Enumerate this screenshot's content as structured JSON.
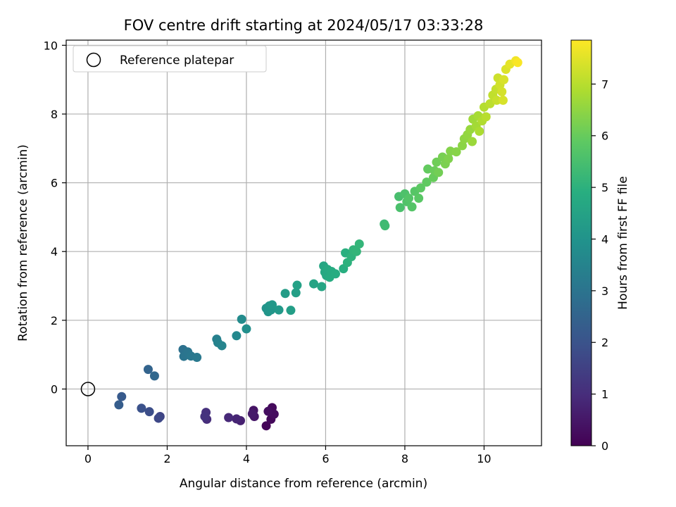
{
  "chart_data": {
    "type": "scatter",
    "title": "FOV centre drift starting at 2024/05/17 03:33:28",
    "xlabel": "Angular distance from reference (arcmin)",
    "ylabel": "Rotation from reference (arcmin)",
    "xlim": [
      -0.55,
      11.45
    ],
    "ylim": [
      -1.65,
      10.15
    ],
    "xticks": [
      0,
      2,
      4,
      6,
      8,
      10
    ],
    "yticks": [
      0,
      2,
      4,
      6,
      8,
      10
    ],
    "grid": true,
    "legend": {
      "placement": "top-left",
      "entries": [
        "Reference platepar"
      ]
    },
    "reference_point": {
      "x": 0,
      "y": 0,
      "label": "Reference platepar"
    },
    "colorbar": {
      "label": "Hours from first FF file",
      "min": 0,
      "max": 7.85,
      "ticks": [
        0,
        1,
        2,
        3,
        4,
        5,
        6,
        7
      ],
      "colormap": "viridis"
    },
    "points": [
      [
        4.5,
        -1.07,
        0.1
      ],
      [
        4.62,
        -0.88,
        0.15
      ],
      [
        4.65,
        -0.54,
        0.2
      ],
      [
        4.7,
        -0.73,
        0.25
      ],
      [
        4.55,
        -0.65,
        0.3
      ],
      [
        4.18,
        -0.62,
        0.4
      ],
      [
        4.2,
        -0.8,
        0.5
      ],
      [
        4.15,
        -0.72,
        0.55
      ],
      [
        3.85,
        -0.92,
        0.7
      ],
      [
        3.75,
        -0.87,
        0.8
      ],
      [
        3.55,
        -0.83,
        0.9
      ],
      [
        3.0,
        -0.88,
        1.0
      ],
      [
        2.98,
        -0.68,
        1.1
      ],
      [
        2.95,
        -0.8,
        1.15
      ],
      [
        1.82,
        -0.8,
        1.6
      ],
      [
        1.78,
        -0.85,
        1.7
      ],
      [
        1.55,
        -0.66,
        1.85
      ],
      [
        1.35,
        -0.56,
        1.95
      ],
      [
        0.85,
        -0.22,
        2.2
      ],
      [
        0.78,
        -0.46,
        2.3
      ],
      [
        1.52,
        0.57,
        2.5
      ],
      [
        1.68,
        0.38,
        2.6
      ],
      [
        2.4,
        1.15,
        2.9
      ],
      [
        2.42,
        0.95,
        3.0
      ],
      [
        2.52,
        1.08,
        3.05
      ],
      [
        2.6,
        0.96,
        3.1
      ],
      [
        2.75,
        0.92,
        3.15
      ],
      [
        3.25,
        1.45,
        3.4
      ],
      [
        3.28,
        1.35,
        3.45
      ],
      [
        3.38,
        1.26,
        3.5
      ],
      [
        3.75,
        1.55,
        3.65
      ],
      [
        3.88,
        2.03,
        3.75
      ],
      [
        4.0,
        1.75,
        3.85
      ],
      [
        4.5,
        2.35,
        4.0
      ],
      [
        4.55,
        2.25,
        4.05
      ],
      [
        4.58,
        2.42,
        4.08
      ],
      [
        4.62,
        2.3,
        4.1
      ],
      [
        4.65,
        2.45,
        4.15
      ],
      [
        4.82,
        2.3,
        4.2
      ],
      [
        4.98,
        2.78,
        4.3
      ],
      [
        5.12,
        2.29,
        4.35
      ],
      [
        5.25,
        2.8,
        4.4
      ],
      [
        5.28,
        3.02,
        4.45
      ],
      [
        5.7,
        3.06,
        4.55
      ],
      [
        5.9,
        2.98,
        4.6
      ],
      [
        5.95,
        3.58,
        4.65
      ],
      [
        5.98,
        3.4,
        4.7
      ],
      [
        6.02,
        3.3,
        4.72
      ],
      [
        6.05,
        3.48,
        4.75
      ],
      [
        6.1,
        3.25,
        4.8
      ],
      [
        6.15,
        3.42,
        4.82
      ],
      [
        6.25,
        3.35,
        4.85
      ],
      [
        6.45,
        3.5,
        4.9
      ],
      [
        6.5,
        3.96,
        4.95
      ],
      [
        6.55,
        3.68,
        5.0
      ],
      [
        6.65,
        3.85,
        5.05
      ],
      [
        6.7,
        4.05,
        5.1
      ],
      [
        6.78,
        4.0,
        5.12
      ],
      [
        6.85,
        4.22,
        5.15
      ],
      [
        7.48,
        4.8,
        5.3
      ],
      [
        7.5,
        4.75,
        5.35
      ],
      [
        7.85,
        5.6,
        5.5
      ],
      [
        7.88,
        5.28,
        5.55
      ],
      [
        8.0,
        5.68,
        5.6
      ],
      [
        8.05,
        5.45,
        5.65
      ],
      [
        8.1,
        5.55,
        5.7
      ],
      [
        8.18,
        5.3,
        5.72
      ],
      [
        8.25,
        5.75,
        5.75
      ],
      [
        8.35,
        5.55,
        5.8
      ],
      [
        8.4,
        5.85,
        5.85
      ],
      [
        8.55,
        6.02,
        5.9
      ],
      [
        8.58,
        6.4,
        5.95
      ],
      [
        8.72,
        6.15,
        6.0
      ],
      [
        8.75,
        6.35,
        6.05
      ],
      [
        8.8,
        6.6,
        6.1
      ],
      [
        8.85,
        6.3,
        6.15
      ],
      [
        8.95,
        6.75,
        6.2
      ],
      [
        9.02,
        6.55,
        6.25
      ],
      [
        9.1,
        6.7,
        6.3
      ],
      [
        9.15,
        6.92,
        6.35
      ],
      [
        9.3,
        6.9,
        6.4
      ],
      [
        9.45,
        7.08,
        6.45
      ],
      [
        9.5,
        7.28,
        6.5
      ],
      [
        9.58,
        7.4,
        6.55
      ],
      [
        9.65,
        7.55,
        6.6
      ],
      [
        9.7,
        7.2,
        6.65
      ],
      [
        9.72,
        7.85,
        6.7
      ],
      [
        9.8,
        7.65,
        6.75
      ],
      [
        9.85,
        7.95,
        6.8
      ],
      [
        9.88,
        7.5,
        6.85
      ],
      [
        9.95,
        7.8,
        6.9
      ],
      [
        10.0,
        8.2,
        6.95
      ],
      [
        10.05,
        7.92,
        7.0
      ],
      [
        10.15,
        8.3,
        7.05
      ],
      [
        10.22,
        8.55,
        7.1
      ],
      [
        10.3,
        8.72,
        7.15
      ],
      [
        10.32,
        8.4,
        7.2
      ],
      [
        10.35,
        9.05,
        7.25
      ],
      [
        10.4,
        8.85,
        7.3
      ],
      [
        10.45,
        8.65,
        7.35
      ],
      [
        10.48,
        8.4,
        7.38
      ],
      [
        10.5,
        9.0,
        7.4
      ],
      [
        10.55,
        9.3,
        7.45
      ],
      [
        10.65,
        9.45,
        7.55
      ],
      [
        10.8,
        9.55,
        7.7
      ],
      [
        10.85,
        9.5,
        7.8
      ]
    ]
  }
}
